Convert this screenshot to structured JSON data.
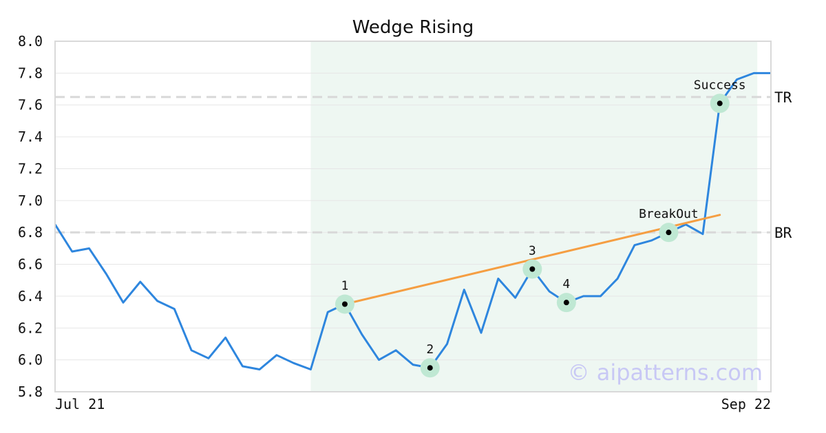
{
  "chart_data": {
    "type": "line",
    "title": "Wedge Rising",
    "xlabel": "",
    "ylabel": "",
    "ylim": [
      5.8,
      8.0
    ],
    "yticks": [
      "5.8",
      "6.0",
      "6.2",
      "6.4",
      "6.6",
      "6.8",
      "7.0",
      "7.2",
      "7.4",
      "7.6",
      "7.8",
      "8.0"
    ],
    "x_tick_labels": [
      "Jul 21",
      "Sep 22"
    ],
    "grid": true,
    "series": [
      {
        "values": [
          6.85,
          6.68,
          6.7,
          6.54,
          6.36,
          6.49,
          6.37,
          6.32,
          6.06,
          6.01,
          6.14,
          5.96,
          5.94,
          6.03,
          5.98,
          5.94,
          6.3,
          6.35,
          6.16,
          6.0,
          6.06,
          5.97,
          5.95,
          6.1,
          6.44,
          6.17,
          6.51,
          6.39,
          6.57,
          6.43,
          6.36,
          6.4,
          6.4,
          6.51,
          6.72,
          6.75,
          6.8,
          6.85,
          6.79,
          7.61,
          7.76,
          7.8,
          7.8
        ]
      }
    ],
    "pattern_region": {
      "start_index": 15,
      "end_index": 41.2
    },
    "trendline": {
      "start": [
        17,
        6.35
      ],
      "end": [
        39,
        6.91
      ]
    },
    "reference_lines": [
      {
        "label": "TR",
        "y": 7.65
      },
      {
        "label": "BR",
        "y": 6.8
      }
    ],
    "annotations": [
      {
        "label": "1",
        "index": 17,
        "y": 6.35
      },
      {
        "label": "2",
        "index": 22,
        "y": 5.95
      },
      {
        "label": "3",
        "index": 28,
        "y": 6.57
      },
      {
        "label": "4",
        "index": 30,
        "y": 6.36
      },
      {
        "label": "BreakOut",
        "index": 36,
        "y": 6.8
      },
      {
        "label": "Success",
        "index": 39,
        "y": 7.61
      }
    ],
    "watermark": "© aipatterns.com",
    "colors": {
      "line": "#2e86de",
      "trendline": "#f59e42",
      "region": "#eef7f2",
      "marker_halo": "#bfe8d3",
      "marker_dot": "#000000",
      "reference": "#d8d8d8",
      "watermark": "#c8c8f5",
      "frame": "#d9d9d9",
      "grid": "#e6e6e6"
    }
  }
}
